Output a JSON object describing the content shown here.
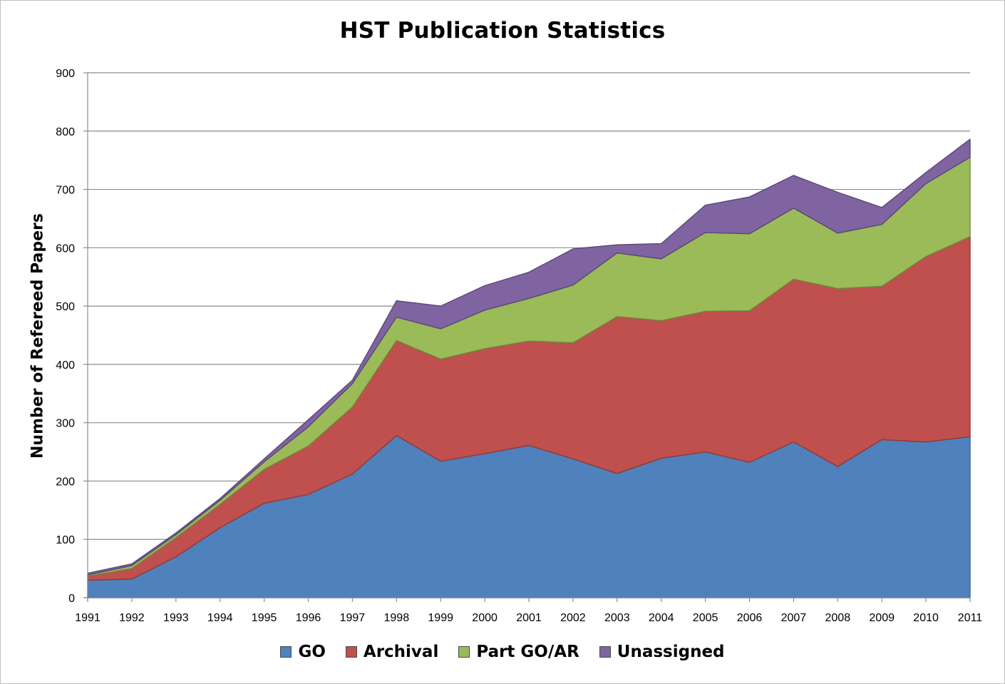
{
  "chart_data": {
    "type": "area",
    "stacked": true,
    "title": "HST Publication Statistics",
    "xlabel": "",
    "ylabel": "Number of Refereed Papers",
    "x": [
      "1991",
      "1992",
      "1993",
      "1994",
      "1995",
      "1996",
      "1997",
      "1998",
      "1999",
      "2000",
      "2001",
      "2002",
      "2003",
      "2004",
      "2005",
      "2006",
      "2007",
      "2008",
      "2009",
      "2010",
      "2011"
    ],
    "ylim": [
      0,
      900
    ],
    "yticks": [
      0,
      100,
      200,
      300,
      400,
      500,
      600,
      700,
      800,
      900
    ],
    "grid": "horizontal",
    "legend_position": "bottom",
    "series": [
      {
        "name": "GO",
        "color": "#4f81bd",
        "edge": "#3a6694",
        "values": [
          30,
          32,
          70,
          120,
          162,
          177,
          212,
          278,
          234,
          247,
          261,
          238,
          213,
          239,
          250,
          232,
          267,
          225,
          271,
          267,
          276
        ]
      },
      {
        "name": "Archival",
        "color": "#c0504d",
        "edge": "#8e3a38",
        "values": [
          7,
          18,
          33,
          40,
          58,
          83,
          115,
          163,
          175,
          180,
          179,
          199,
          269,
          236,
          241,
          260,
          279,
          305,
          263,
          318,
          343
        ]
      },
      {
        "name": "Part GO/AR",
        "color": "#9bbb59",
        "edge": "#6e8a3c",
        "values": [
          2,
          5,
          5,
          7,
          13,
          33,
          40,
          40,
          52,
          66,
          73,
          99,
          109,
          106,
          135,
          132,
          122,
          95,
          106,
          125,
          136
        ]
      },
      {
        "name": "Unassigned",
        "color": "#8064a2",
        "edge": "#5b4678",
        "values": [
          3,
          3,
          3,
          3,
          5,
          12,
          6,
          28,
          39,
          42,
          45,
          62,
          14,
          26,
          47,
          63,
          56,
          70,
          29,
          19,
          31
        ]
      }
    ]
  }
}
